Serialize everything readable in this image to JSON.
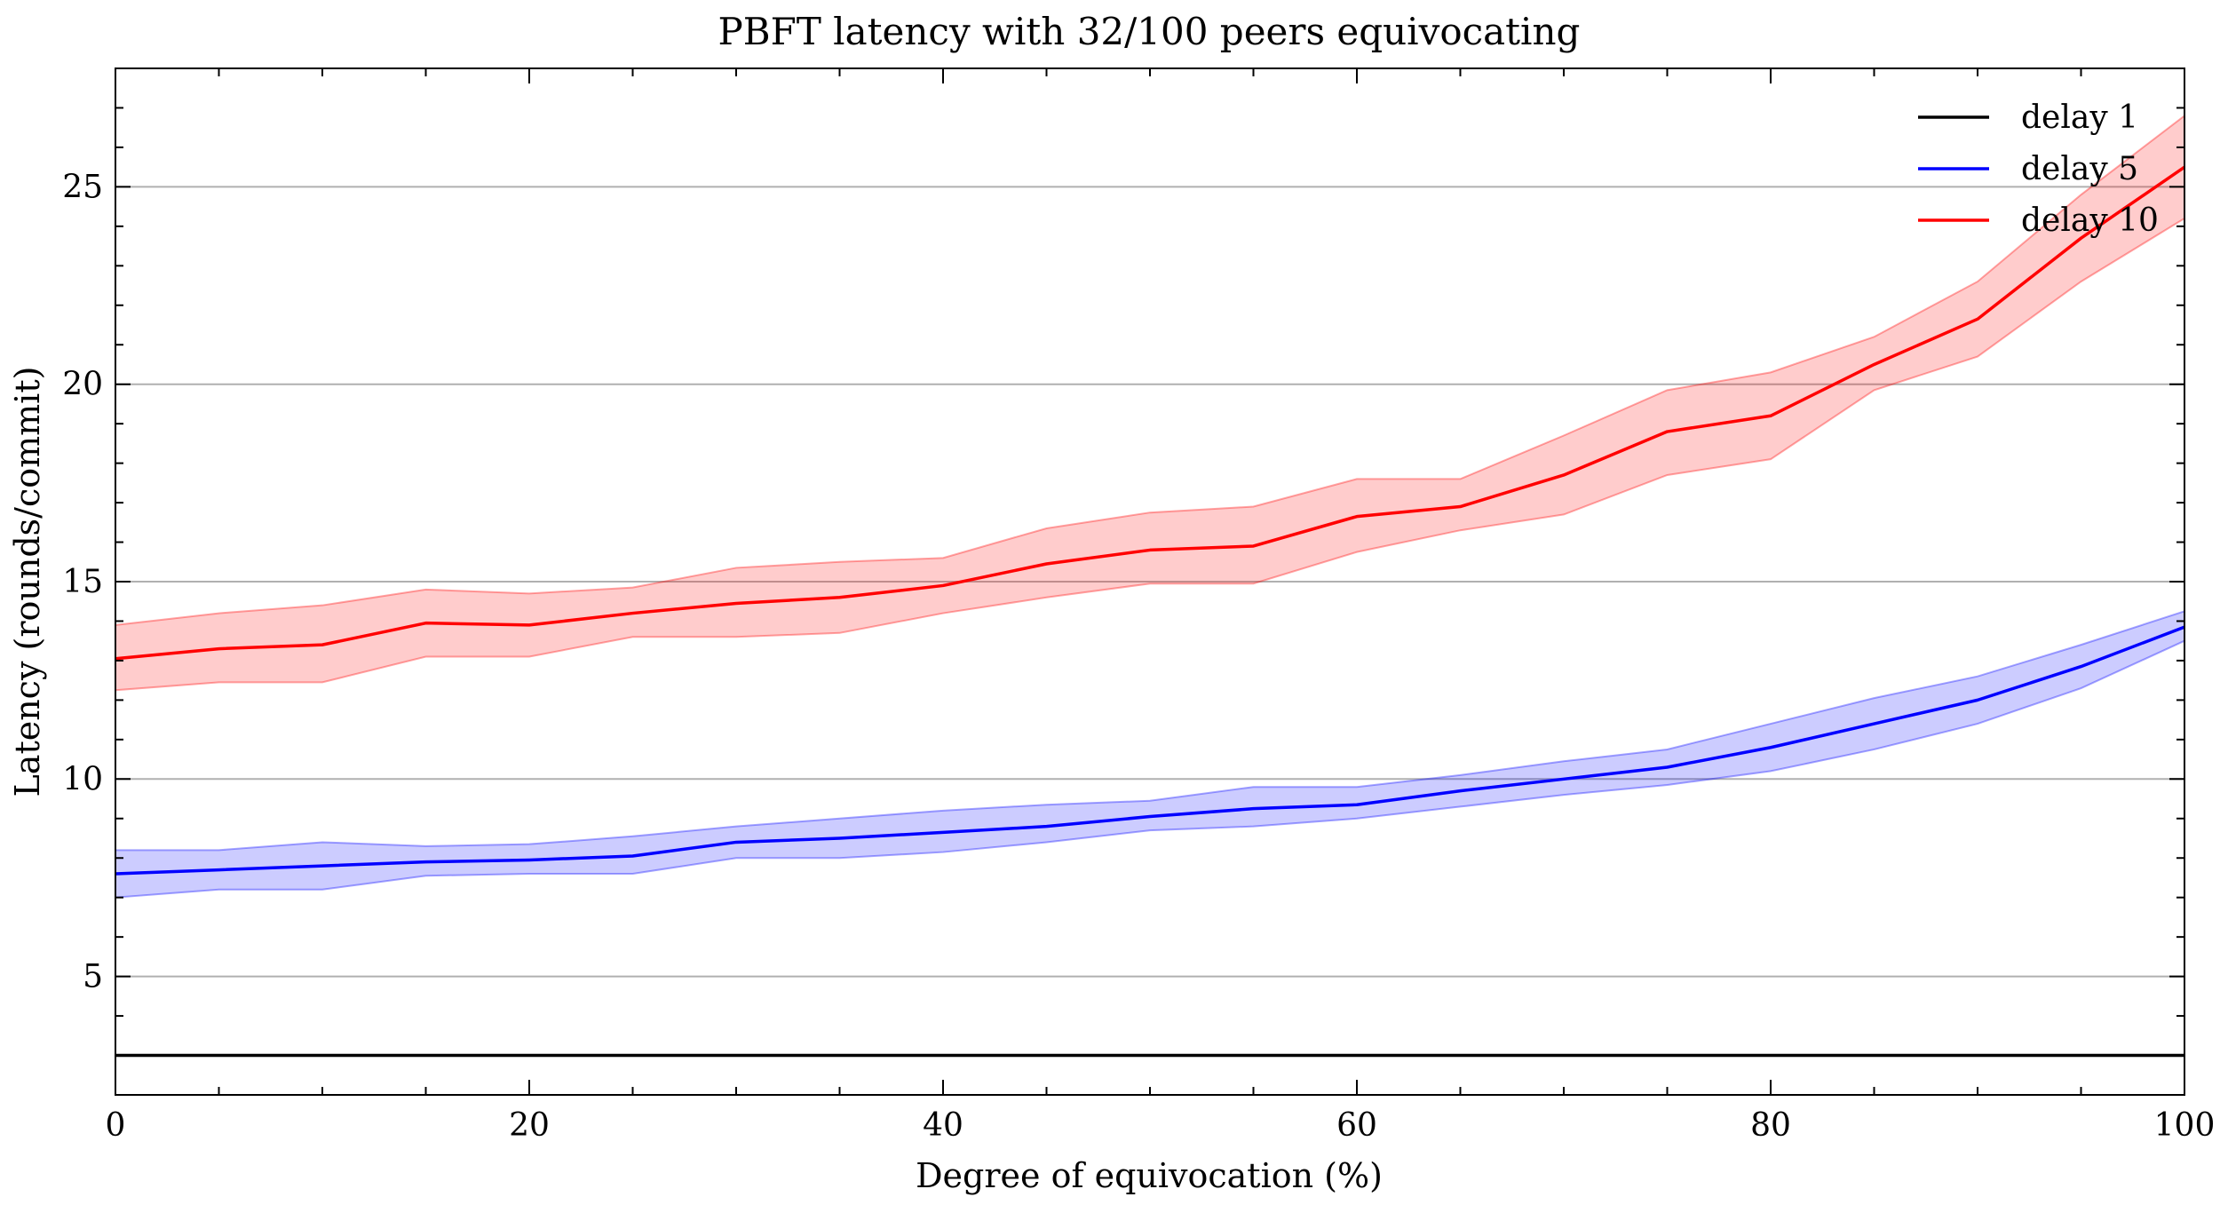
{
  "chart_data": {
    "type": "line",
    "title": "PBFT latency with 32/100 peers equivocating",
    "xlabel": "Degree of equivocation (%)",
    "ylabel": "Latency (rounds/commit)",
    "xlim": [
      0,
      100
    ],
    "ylim": [
      2,
      28
    ],
    "x_ticks": [
      0,
      20,
      40,
      60,
      80,
      100
    ],
    "y_ticks": [
      5,
      10,
      15,
      20,
      25
    ],
    "x_minor_step": 5,
    "y_minor_step": 1,
    "grid": "y-major",
    "legend_position": "top-right",
    "x": [
      0,
      5,
      10,
      15,
      20,
      25,
      30,
      35,
      40,
      45,
      50,
      55,
      60,
      65,
      70,
      75,
      80,
      85,
      90,
      95,
      100
    ],
    "series": [
      {
        "name": "delay 1",
        "color": "#000000",
        "values": [
          3,
          3,
          3,
          3,
          3,
          3,
          3,
          3,
          3,
          3,
          3,
          3,
          3,
          3,
          3,
          3,
          3,
          3,
          3,
          3,
          3
        ]
      },
      {
        "name": "delay 5",
        "color": "#0000ff",
        "values": [
          7.6,
          7.7,
          7.8,
          7.9,
          7.95,
          8.05,
          8.4,
          8.5,
          8.65,
          8.8,
          9.05,
          9.25,
          9.35,
          9.7,
          10.0,
          10.3,
          10.8,
          11.4,
          12.0,
          12.85,
          13.85
        ],
        "band_lower": [
          7.0,
          7.2,
          7.2,
          7.55,
          7.6,
          7.6,
          8.0,
          8.0,
          8.15,
          8.4,
          8.7,
          8.8,
          9.0,
          9.3,
          9.6,
          9.85,
          10.2,
          10.75,
          11.4,
          12.3,
          13.5
        ],
        "band_upper": [
          8.2,
          8.2,
          8.4,
          8.3,
          8.35,
          8.55,
          8.8,
          9.0,
          9.2,
          9.35,
          9.45,
          9.8,
          9.8,
          10.1,
          10.45,
          10.75,
          11.4,
          12.05,
          12.6,
          13.4,
          14.25
        ]
      },
      {
        "name": "delay 10",
        "color": "#ff0000",
        "values": [
          13.05,
          13.3,
          13.4,
          13.95,
          13.9,
          14.2,
          14.45,
          14.6,
          14.9,
          15.45,
          15.8,
          15.9,
          16.65,
          16.9,
          17.7,
          18.8,
          19.2,
          20.5,
          21.65,
          23.7,
          25.5
        ],
        "band_lower": [
          12.25,
          12.45,
          12.45,
          13.1,
          13.1,
          13.6,
          13.6,
          13.7,
          14.2,
          14.6,
          14.95,
          14.95,
          15.75,
          16.3,
          16.7,
          17.7,
          18.1,
          19.85,
          20.7,
          22.6,
          24.2
        ],
        "band_upper": [
          13.9,
          14.2,
          14.4,
          14.8,
          14.7,
          14.85,
          15.35,
          15.5,
          15.6,
          16.35,
          16.75,
          16.9,
          17.6,
          17.6,
          18.7,
          19.85,
          20.3,
          21.2,
          22.6,
          24.8,
          26.8
        ]
      }
    ]
  }
}
